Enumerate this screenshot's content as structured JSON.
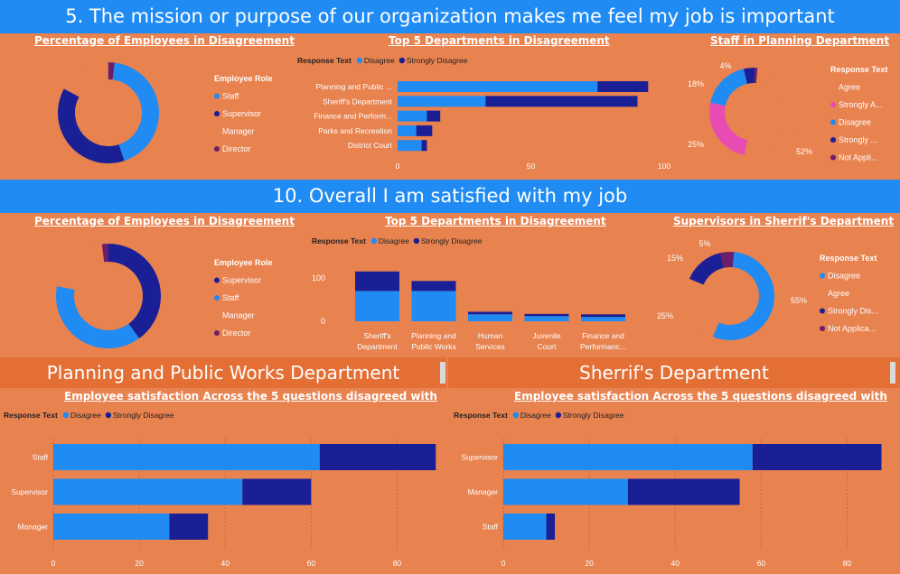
{
  "section1": {
    "title": "5. The mission or purpose of our organization makes me feel my job is important"
  },
  "section2": {
    "title": "10. Overall I am satisfied with my job"
  },
  "colors": {
    "disagree": "#1F8BF3",
    "strongly": "#1A1F96",
    "manager": "#E8824F",
    "director": "#6B1E6B",
    "agree": "#E8824F",
    "strongly_agree": "#E84CB3",
    "not_applicable": "#6B1E6B",
    "bg": "#E8824F",
    "banner": "#1F8BF3"
  },
  "labels": {
    "response_text": "Response Text",
    "employee_role": "Employee Role"
  },
  "dept_headers": {
    "left": "Planning and Public Works Department",
    "right": "Sherrif's Department"
  },
  "chart_data": [
    {
      "id": "q5-role",
      "type": "pie",
      "title": "Percentage of Employees in Disagreement",
      "legend_title": "Employee Role",
      "legend": [
        "Staff",
        "Supervisor",
        "Manager",
        "Director"
      ],
      "values": [
        43,
        38,
        17,
        2
      ]
    },
    {
      "id": "q5-dept",
      "type": "bar",
      "orientation": "horizontal",
      "title": "Top 5 Departments in Disagreement",
      "legend_title": "Response Text",
      "categories": [
        "Planning and Public ...",
        "Sheriff's Department",
        "Finance and Perform...",
        "Parks and Recreation",
        "District Court"
      ],
      "series": [
        {
          "name": "Disagree",
          "values": [
            75,
            33,
            11,
            7,
            9
          ]
        },
        {
          "name": "Strongly Disagree",
          "values": [
            19,
            57,
            5,
            6,
            2
          ]
        }
      ],
      "xticks": [
        "0",
        "50",
        "100"
      ],
      "xlim": [
        0,
        100
      ]
    },
    {
      "id": "q5-planning",
      "type": "pie",
      "title": "Staff in Planning Department",
      "legend_title": "Response Text",
      "legend": [
        "Agree",
        "Strongly A...",
        "Disagree",
        "Strongly ...",
        "Not Appli..."
      ],
      "values": [
        52,
        25,
        18,
        4,
        1
      ],
      "data_labels": [
        "52%",
        "25%",
        "18%",
        "4%",
        ""
      ]
    },
    {
      "id": "q10-role",
      "type": "pie",
      "title": "Percentage of Employees in Disagreement",
      "legend_title": "Employee Role",
      "legend": [
        "Supervisor",
        "Staff",
        "Manager",
        "Director"
      ],
      "values": [
        40,
        38,
        20,
        2
      ]
    },
    {
      "id": "q10-dept",
      "type": "bar",
      "orientation": "vertical",
      "title": "Top 5 Departments in Disagreement",
      "legend_title": "Response Text",
      "categories": [
        "Sheriff's Department",
        "Planning and Public Works",
        "Human Services",
        "Juvenile Court",
        "Finance and Performanc..."
      ],
      "series": [
        {
          "name": "Disagree",
          "values": [
            70,
            70,
            16,
            12,
            10
          ]
        },
        {
          "name": "Strongly Disagree",
          "values": [
            45,
            23,
            6,
            5,
            6
          ]
        }
      ],
      "yticks": [
        "0",
        "100"
      ],
      "ylim": [
        0,
        100
      ]
    },
    {
      "id": "q10-sheriff",
      "type": "pie",
      "title": "Supervisors in Sherrif's Department",
      "legend_title": "Response Text",
      "legend": [
        "Disagree",
        "Agree",
        "Strongly Dis...",
        "Not Applica..."
      ],
      "values": [
        55,
        25,
        15,
        5
      ],
      "data_labels": [
        "55%",
        "25%",
        "15%",
        "5%"
      ]
    },
    {
      "id": "ppw-roles",
      "type": "bar",
      "orientation": "horizontal",
      "title": "Employee satisfaction Across the 5 questions disagreed with",
      "legend_title": "Response Text",
      "categories": [
        "Staff",
        "Supervisor",
        "Manager"
      ],
      "series": [
        {
          "name": "Disagree",
          "values": [
            62,
            44,
            27
          ]
        },
        {
          "name": "Strongly Disagree",
          "values": [
            27,
            16,
            9
          ]
        }
      ],
      "xticks": [
        "0",
        "20",
        "40",
        "60",
        "80"
      ],
      "xlim": [
        0,
        90
      ]
    },
    {
      "id": "sheriff-roles",
      "type": "bar",
      "orientation": "horizontal",
      "title": "Employee satisfaction Across the 5 questions disagreed with",
      "legend_title": "Response Text",
      "categories": [
        "Supervisor",
        "Manager",
        "Staff"
      ],
      "series": [
        {
          "name": "Disagree",
          "values": [
            58,
            29,
            10
          ]
        },
        {
          "name": "Strongly Disagree",
          "values": [
            30,
            26,
            2
          ]
        }
      ],
      "xticks": [
        "0",
        "20",
        "40",
        "60",
        "80"
      ],
      "xlim": [
        0,
        90
      ]
    }
  ]
}
